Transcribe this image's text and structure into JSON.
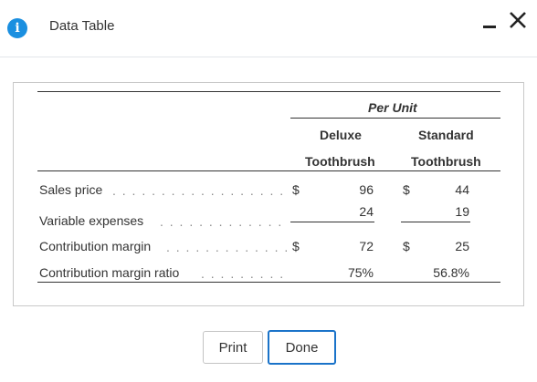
{
  "window": {
    "title": "Data Table",
    "icons": {
      "info": "info-icon",
      "minimize": "minimize-icon",
      "close": "close-icon"
    },
    "accent_color": "#1a8fe0"
  },
  "table": {
    "group_header": "Per Unit",
    "columns": [
      {
        "line1": "Deluxe",
        "line2": "Toothbrush"
      },
      {
        "line1": "Standard",
        "line2": "Toothbrush"
      }
    ],
    "rows": [
      {
        "label": "Sales price",
        "deluxe_sym": "$",
        "deluxe": "96",
        "standard_sym": "$",
        "standard": "44"
      },
      {
        "label": "Variable expenses",
        "deluxe_sym": "",
        "deluxe": "24",
        "standard_sym": "",
        "standard": "19"
      },
      {
        "label": "Contribution margin",
        "deluxe_sym": "$",
        "deluxe": "72",
        "standard_sym": "$",
        "standard": "25"
      },
      {
        "label": "Contribution margin ratio",
        "deluxe_sym": "",
        "deluxe": "75%",
        "standard_sym": "",
        "standard": "56.8%"
      }
    ]
  },
  "buttons": {
    "print": "Print",
    "done": "Done"
  }
}
